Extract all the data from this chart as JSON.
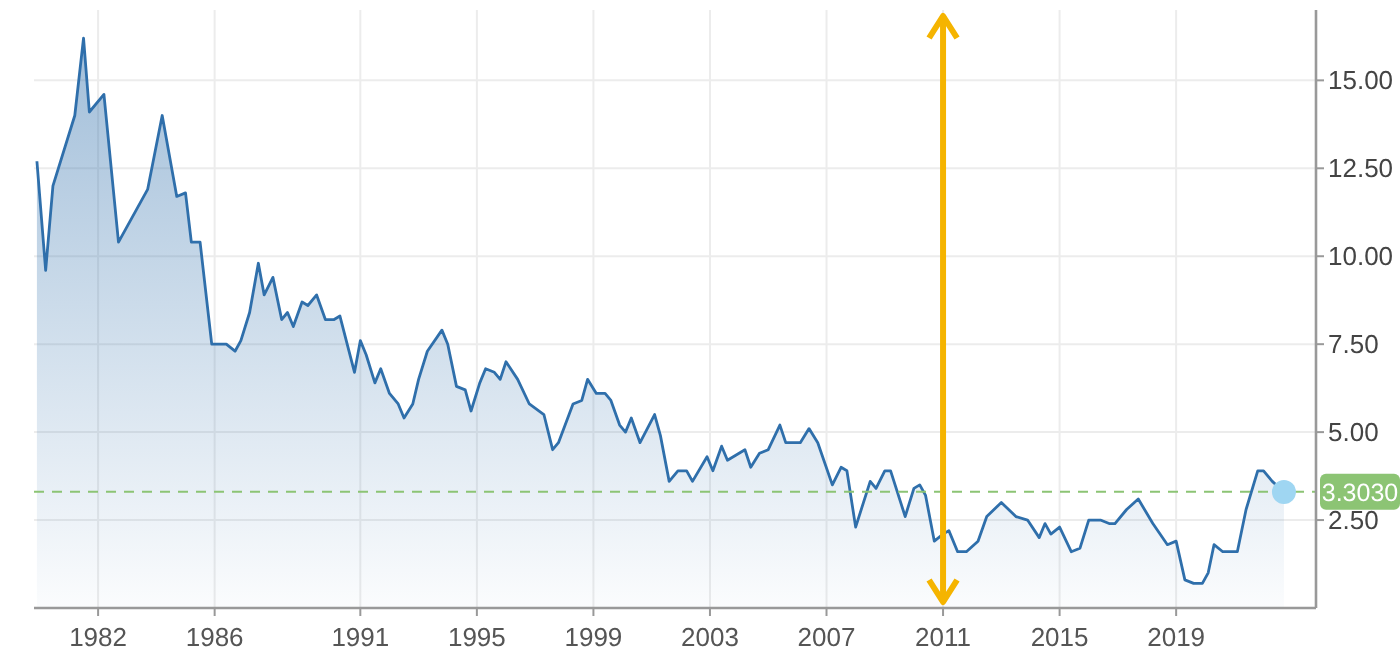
{
  "chart_data": {
    "type": "area",
    "x": [
      1979.9,
      1980.2,
      1980.45,
      1981.2,
      1981.5,
      1981.7,
      1982.2,
      1982.7,
      1983.7,
      1984.2,
      1984.7,
      1985.0,
      1985.2,
      1985.5,
      1985.9,
      1986.4,
      1986.7,
      1986.9,
      1987.2,
      1987.5,
      1987.7,
      1988.0,
      1988.3,
      1988.5,
      1988.7,
      1989.0,
      1989.2,
      1989.5,
      1989.8,
      1990.1,
      1990.3,
      1990.8,
      1991.0,
      1991.2,
      1991.5,
      1991.7,
      1992.0,
      1992.3,
      1992.5,
      1992.8,
      1993.0,
      1993.3,
      1993.8,
      1994.0,
      1994.3,
      1994.6,
      1994.8,
      1995.1,
      1995.3,
      1995.6,
      1995.8,
      1996.0,
      1996.4,
      1996.8,
      1997.3,
      1997.6,
      1997.8,
      1998.3,
      1998.6,
      1998.8,
      1999.1,
      1999.4,
      1999.6,
      1999.9,
      2000.1,
      2000.3,
      2000.6,
      2001.1,
      2001.3,
      2001.6,
      2001.9,
      2002.2,
      2002.4,
      2002.9,
      2003.1,
      2003.4,
      2003.6,
      2004.2,
      2004.4,
      2004.7,
      2005.0,
      2005.4,
      2005.6,
      2006.1,
      2006.4,
      2006.7,
      2007.2,
      2007.5,
      2007.7,
      2008.0,
      2008.5,
      2008.7,
      2009.0,
      2009.2,
      2009.7,
      2010.0,
      2010.2,
      2010.4,
      2010.7,
      2011.0,
      2011.2,
      2011.5,
      2011.8,
      2012.2,
      2012.5,
      2013.0,
      2013.5,
      2013.9,
      2014.3,
      2014.5,
      2014.7,
      2015.0,
      2015.4,
      2015.7,
      2016.0,
      2016.4,
      2016.7,
      2016.9,
      2017.3,
      2017.7,
      2018.2,
      2018.7,
      2019.0,
      2019.3,
      2019.6,
      2019.9,
      2020.1,
      2020.3,
      2020.6,
      2021.1,
      2021.4,
      2021.8,
      2022.0,
      2022.3,
      2022.7
    ],
    "series": [
      {
        "color": "#2f6fab",
        "values": [
          12.7,
          9.6,
          12.0,
          14.0,
          16.2,
          14.1,
          14.6,
          10.4,
          11.9,
          14.0,
          11.7,
          11.8,
          10.4,
          10.4,
          7.5,
          7.5,
          7.3,
          7.6,
          8.4,
          9.8,
          8.9,
          9.4,
          8.2,
          8.4,
          8.0,
          8.7,
          8.6,
          8.9,
          8.2,
          8.2,
          8.3,
          6.7,
          7.6,
          7.2,
          6.4,
          6.8,
          6.1,
          5.8,
          5.4,
          5.8,
          6.5,
          7.3,
          7.9,
          7.5,
          6.3,
          6.2,
          5.6,
          6.4,
          6.8,
          6.7,
          6.5,
          7.0,
          6.5,
          5.8,
          5.5,
          4.5,
          4.7,
          5.8,
          5.9,
          6.5,
          6.1,
          6.1,
          5.9,
          5.2,
          5.0,
          5.4,
          4.7,
          5.5,
          4.9,
          3.6,
          3.9,
          3.9,
          3.6,
          4.3,
          3.9,
          4.6,
          4.2,
          4.5,
          4.0,
          4.4,
          4.5,
          5.2,
          4.7,
          4.7,
          5.1,
          4.7,
          3.5,
          4.0,
          3.9,
          2.3,
          3.6,
          3.4,
          3.9,
          3.9,
          2.6,
          3.4,
          3.5,
          3.2,
          1.9,
          2.1,
          2.2,
          1.6,
          1.6,
          1.9,
          2.6,
          3.0,
          2.6,
          2.5,
          2.0,
          2.4,
          2.1,
          2.3,
          1.6,
          1.7,
          2.5,
          2.5,
          2.4,
          2.4,
          2.8,
          3.1,
          2.4,
          1.8,
          1.9,
          0.8,
          0.7,
          0.7,
          1.0,
          1.8,
          1.6,
          1.6,
          2.8,
          3.9,
          3.9,
          3.6,
          3.3
        ]
      }
    ],
    "xlim": [
      1979.8,
      2023.8
    ],
    "xticks": [
      1982,
      1986,
      1991,
      1995,
      1999,
      2003,
      2007,
      2011,
      2015,
      2019
    ],
    "ylim": [
      0,
      17
    ],
    "yticks": [
      {
        "value": 2.5,
        "label": "2.50"
      },
      {
        "value": 5,
        "label": "5.00"
      },
      {
        "value": 7.5,
        "label": "7.50"
      },
      {
        "value": 10,
        "label": "10.00"
      },
      {
        "value": 12.5,
        "label": "12.50"
      },
      {
        "value": 15,
        "label": "15.00"
      }
    ],
    "grid": true,
    "ref_lines": [
      {
        "axis": "y",
        "value": 3.303,
        "label": "3.3030",
        "color": "#8cc474",
        "line_style": "dashed"
      },
      {
        "axis": "x",
        "value": 2011,
        "color": "#f5b400"
      }
    ]
  }
}
